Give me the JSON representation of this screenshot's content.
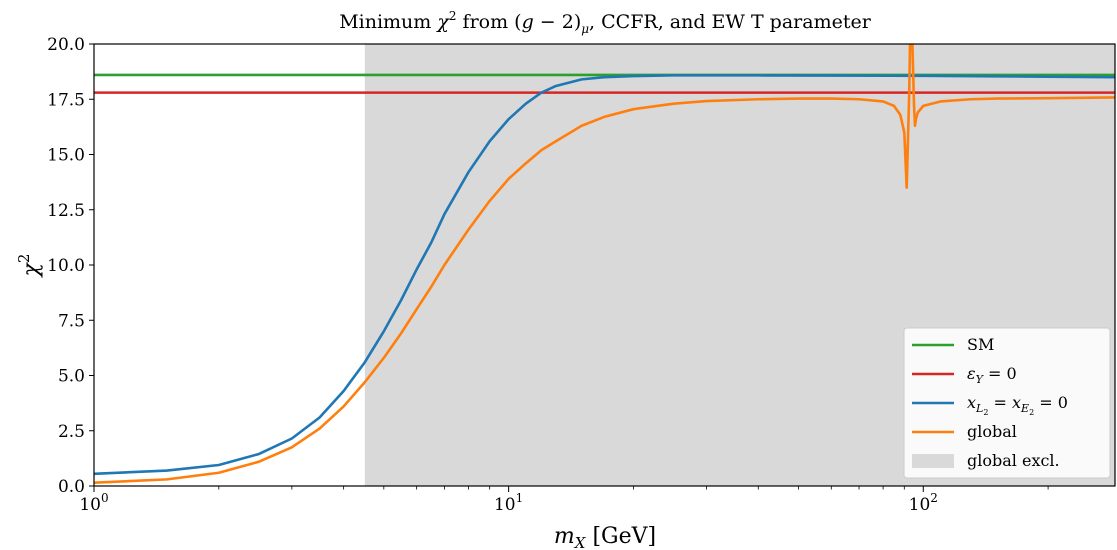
{
  "chart_data": {
    "type": "line",
    "title": "Minimum χ² from (g − 2)μ, CCFR, and EW T parameter",
    "xlabel": "m_X [GeV]",
    "ylabel": "χ²",
    "xscale": "log",
    "xlim": [
      1,
      290
    ],
    "ylim": [
      0,
      20
    ],
    "xticks": [
      {
        "value": 1,
        "label": "10⁰"
      },
      {
        "value": 10,
        "label": "10¹"
      },
      {
        "value": 100,
        "label": "10²"
      }
    ],
    "yticks": [
      "0.0",
      "2.5",
      "5.0",
      "7.5",
      "10.0",
      "12.5",
      "15.0",
      "17.5",
      "20.0"
    ],
    "grid": false,
    "legend_position": "lower-right",
    "shaded_regions": [
      {
        "name": "global excl.",
        "x_from": 4.5,
        "x_to": 290,
        "color": "#d9d9d9"
      }
    ],
    "series": [
      {
        "name": "SM",
        "color": "#2ca02c",
        "x": [
          1,
          290
        ],
        "y": [
          18.6,
          18.6
        ]
      },
      {
        "name": "ε_Y = 0",
        "color": "#d62728",
        "x": [
          1,
          290
        ],
        "y": [
          17.8,
          17.8
        ]
      },
      {
        "name": "x_L₂ = x_E₂ = 0",
        "color": "#1f77b4",
        "x": [
          1,
          1.5,
          2,
          2.5,
          3,
          3.5,
          4,
          4.5,
          5,
          5.5,
          6,
          6.5,
          7,
          8,
          9,
          10,
          11,
          12,
          13,
          15,
          17,
          20,
          25,
          30,
          40,
          60,
          100,
          150,
          200,
          290
        ],
        "y": [
          0.55,
          0.7,
          0.95,
          1.45,
          2.15,
          3.1,
          4.3,
          5.6,
          7.0,
          8.4,
          9.8,
          11.0,
          12.3,
          14.2,
          15.6,
          16.6,
          17.3,
          17.8,
          18.1,
          18.4,
          18.5,
          18.55,
          18.58,
          18.58,
          18.58,
          18.57,
          18.56,
          18.54,
          18.52,
          18.5
        ]
      },
      {
        "name": "global",
        "color": "#ff7f0e",
        "x": [
          1,
          1.5,
          2,
          2.5,
          3,
          3.5,
          4,
          4.5,
          5,
          5.5,
          6,
          6.5,
          7,
          8,
          9,
          10,
          11,
          12,
          13,
          15,
          17,
          20,
          25,
          30,
          40,
          50,
          60,
          70,
          80,
          85,
          88,
          90,
          91.2,
          92.5,
          93,
          94,
          95,
          95.5,
          96,
          97,
          100,
          110,
          130,
          150,
          200,
          290
        ],
        "y": [
          0.15,
          0.3,
          0.6,
          1.1,
          1.75,
          2.6,
          3.6,
          4.7,
          5.8,
          6.9,
          8.0,
          9.0,
          10.0,
          11.6,
          12.9,
          13.9,
          14.6,
          15.2,
          15.6,
          16.3,
          16.7,
          17.05,
          17.3,
          17.42,
          17.5,
          17.53,
          17.53,
          17.5,
          17.4,
          17.2,
          16.8,
          16.0,
          13.5,
          17.8,
          20.5,
          20.5,
          17.2,
          16.3,
          16.6,
          16.9,
          17.2,
          17.4,
          17.5,
          17.53,
          17.55,
          17.58
        ]
      }
    ]
  }
}
